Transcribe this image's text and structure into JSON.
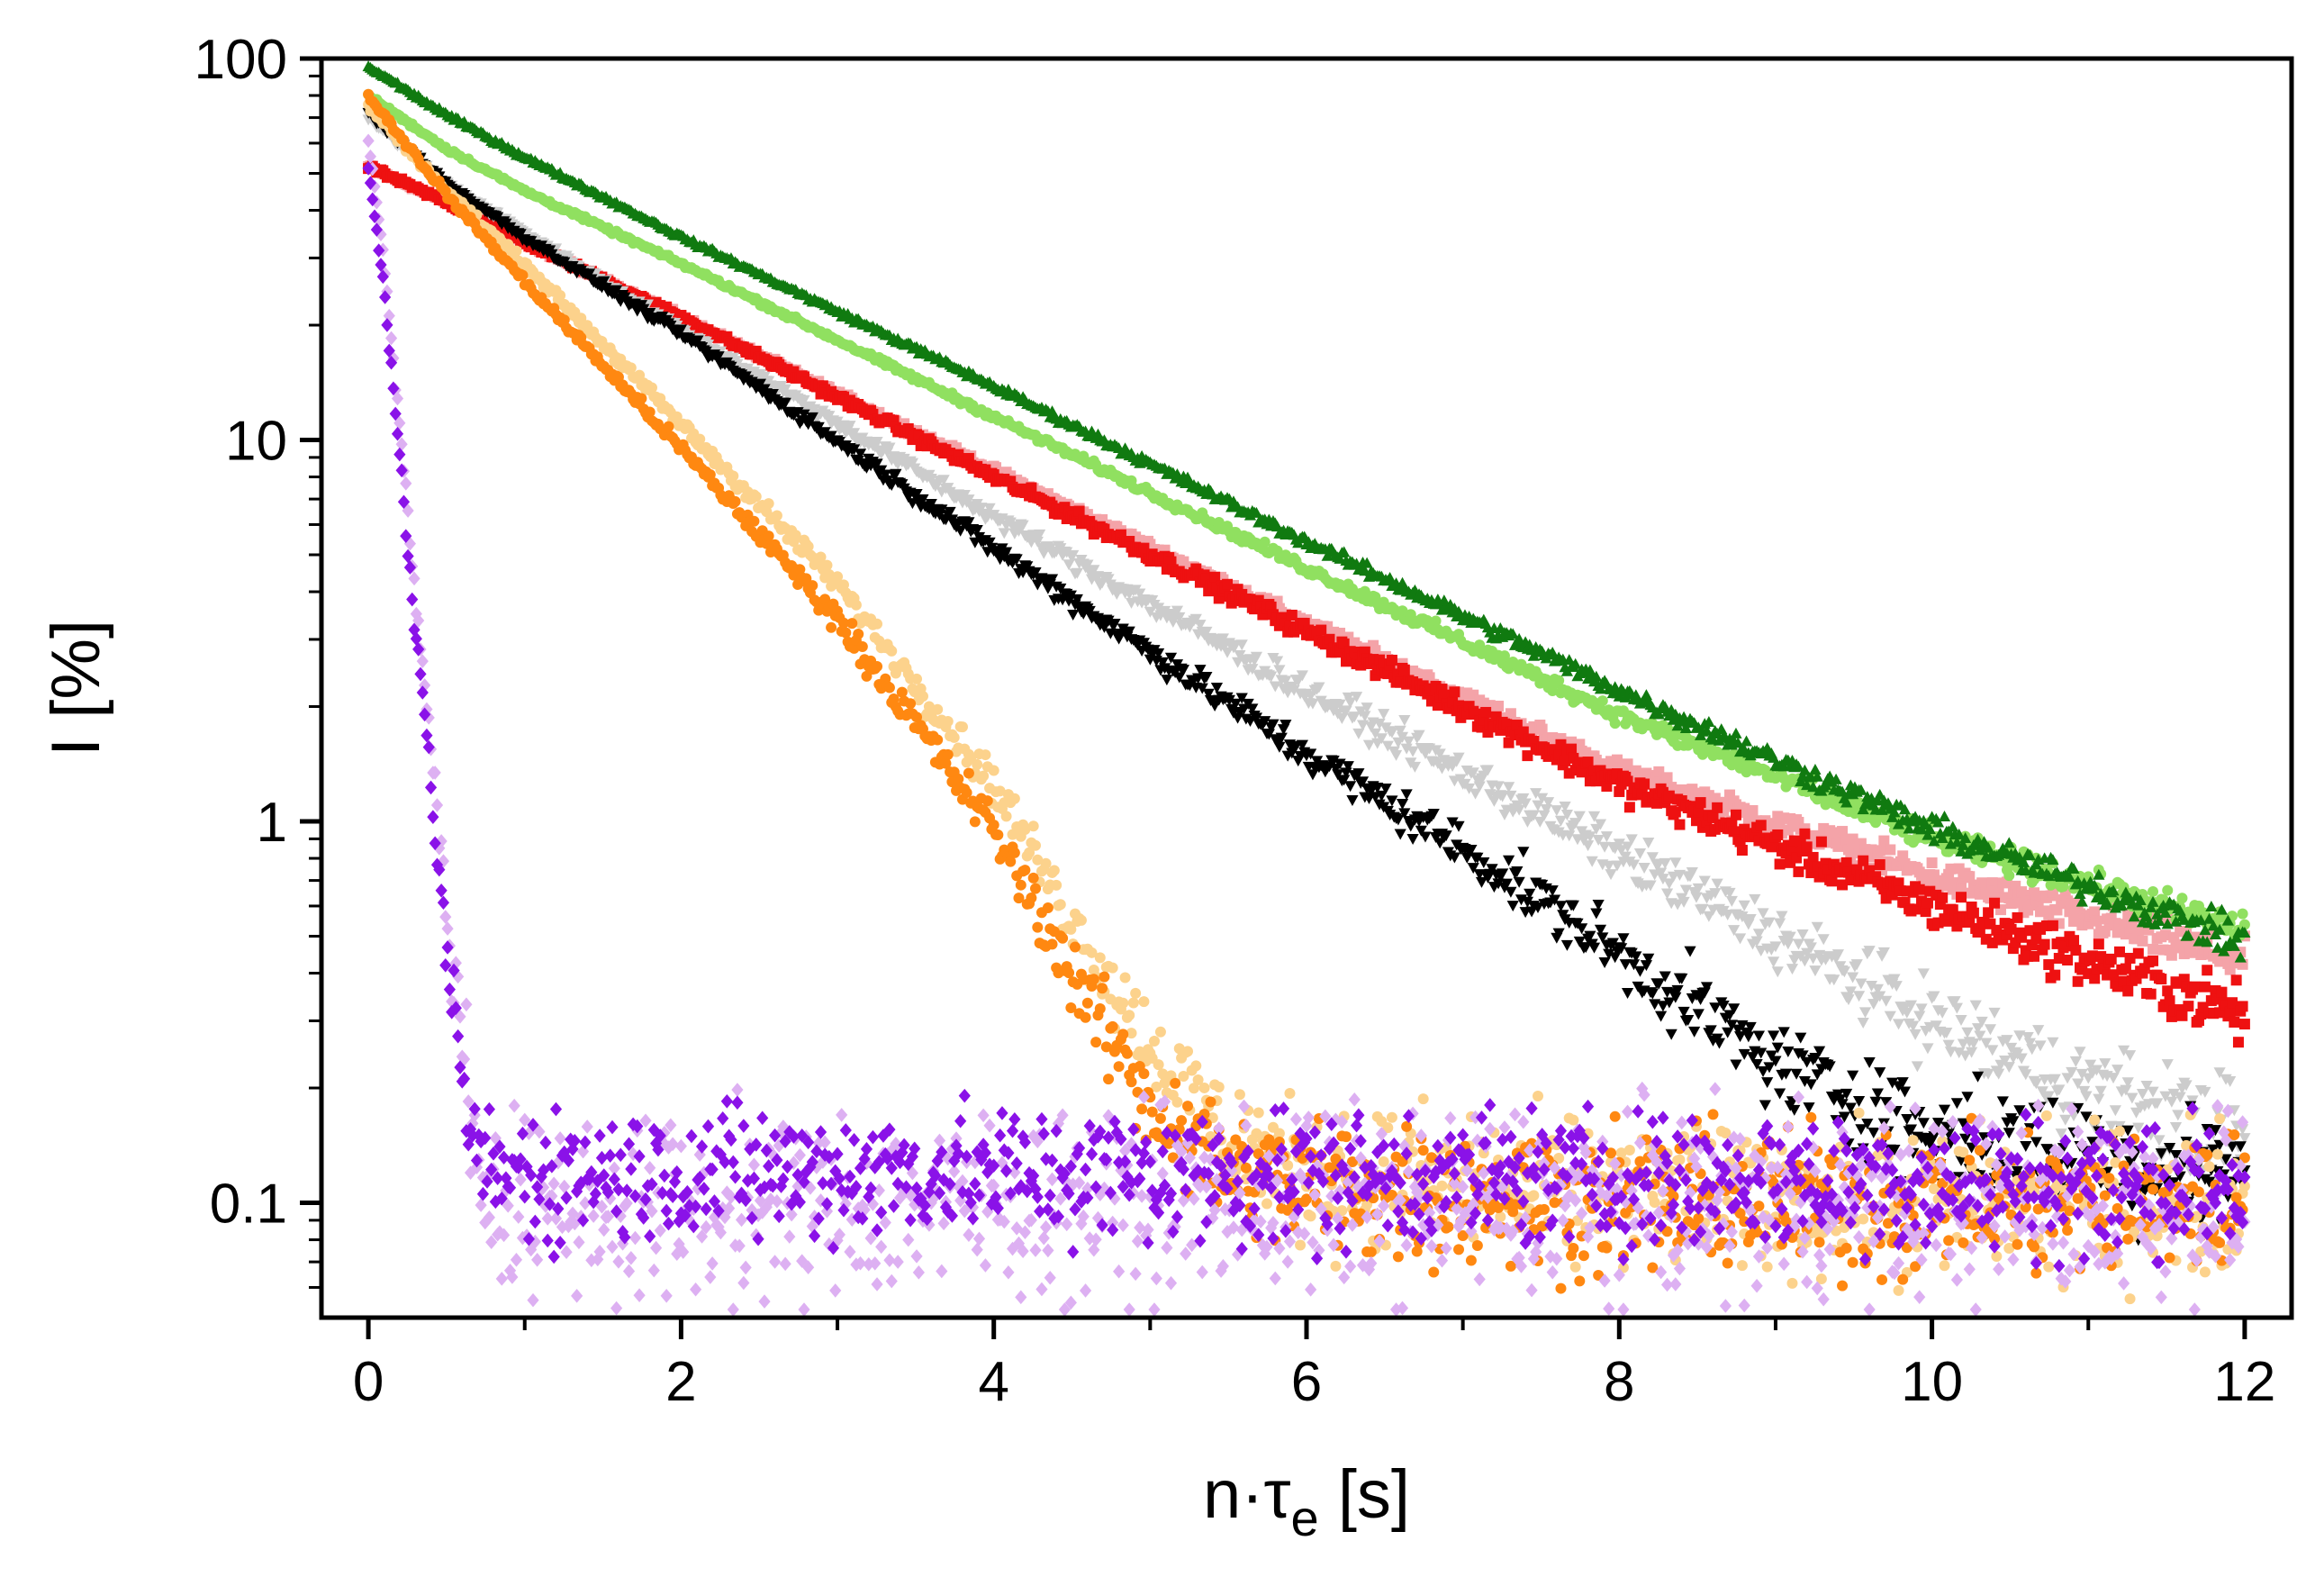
{
  "chart_data": {
    "type": "scatter",
    "title": "",
    "xlabel": {
      "main": "n·τ",
      "sub": "e",
      "unit": " [s]"
    },
    "ylabel": "I [%]",
    "xlim": [
      -0.3,
      12.3
    ],
    "ylim": [
      0.05,
      100
    ],
    "yscale": "log",
    "x_ticks": [
      0,
      2,
      4,
      6,
      8,
      10,
      12
    ],
    "x_tick_labels": [
      "0",
      "2",
      "4",
      "6",
      "8",
      "10",
      "12"
    ],
    "y_ticks": [
      0.1,
      1,
      10,
      100
    ],
    "y_tick_labels": [
      "0.1",
      "1",
      "10",
      "100"
    ],
    "grid": false,
    "legend": "none",
    "series": [
      {
        "name": "light-pink",
        "color": "#f4a3a8",
        "marker": "square",
        "x": [
          0,
          0.5,
          1,
          2,
          4,
          6,
          8,
          10,
          12
        ],
        "values": [
          52,
          42,
          33,
          21,
          8.3,
          3.3,
          1.35,
          0.72,
          0.43
        ],
        "noise": 0.08
      },
      {
        "name": "red",
        "color": "#ee1111",
        "marker": "square",
        "x": [
          0,
          0.5,
          1,
          2,
          4,
          6,
          8,
          10,
          12
        ],
        "values": [
          52,
          42,
          33,
          21,
          8.0,
          3.15,
          1.25,
          0.6,
          0.31
        ],
        "noise": 0.1
      },
      {
        "name": "light-green",
        "color": "#90e060",
        "marker": "circle",
        "x": [
          0,
          0.5,
          1,
          2,
          4,
          6,
          8,
          10,
          12
        ],
        "values": [
          80,
          58,
          45,
          29,
          11.5,
          4.6,
          1.9,
          0.9,
          0.52
        ],
        "noise": 0.07
      },
      {
        "name": "dark-green",
        "color": "#107a10",
        "marker": "triangle-up",
        "x": [
          0,
          0.5,
          1,
          2,
          4,
          6,
          8,
          10,
          12
        ],
        "values": [
          95,
          71,
          55,
          34,
          13.8,
          5.4,
          2.2,
          0.95,
          0.48
        ],
        "noise": 0.08
      },
      {
        "name": "light-gray",
        "color": "#cccccc",
        "marker": "triangle-down",
        "x": [
          0,
          0.5,
          1,
          2,
          4,
          6,
          8,
          9,
          10,
          11,
          12
        ],
        "values": [
          70,
          47,
          35,
          19.5,
          6.3,
          2.2,
          0.82,
          0.5,
          0.3,
          0.2,
          0.15
        ],
        "noise": 0.13
      },
      {
        "name": "black",
        "color": "#000000",
        "marker": "triangle-down",
        "x": [
          0,
          0.5,
          1,
          2,
          4,
          6,
          7,
          8,
          9,
          10,
          11,
          12
        ],
        "values": [
          72,
          47,
          34,
          19,
          5.2,
          1.5,
          0.85,
          0.45,
          0.23,
          0.15,
          0.13,
          0.12
        ],
        "noise": 0.13
      },
      {
        "name": "light-orange",
        "color": "#fcd28c",
        "marker": "circle",
        "x": [
          0,
          0.5,
          1,
          2,
          3,
          4,
          4.5,
          5,
          5.5,
          6,
          8,
          10,
          12
        ],
        "values": [
          75,
          45,
          29,
          11,
          4.2,
          1.25,
          0.55,
          0.26,
          0.15,
          0.12,
          0.105,
          0.1,
          0.1
        ],
        "noise": 0.14
      },
      {
        "name": "orange",
        "color": "#ff8811",
        "marker": "circle",
        "x": [
          0,
          0.5,
          1,
          2,
          3,
          4,
          4.5,
          5,
          5.5,
          6,
          8,
          10,
          12
        ],
        "values": [
          80,
          44,
          26,
          9.5,
          3.4,
          0.95,
          0.4,
          0.18,
          0.12,
          0.11,
          0.1,
          0.1,
          0.1
        ],
        "noise": 0.14
      },
      {
        "name": "lavender",
        "color": "#ddb0f2",
        "marker": "diamond",
        "x": [
          0,
          0.1,
          0.2,
          0.3,
          0.4,
          0.5,
          0.6,
          0.7,
          0.8,
          1.5,
          4,
          8,
          12
        ],
        "values": [
          62,
          30,
          11,
          4,
          1.5,
          0.6,
          0.26,
          0.13,
          0.1,
          0.095,
          0.1,
          0.1,
          0.1
        ],
        "noise": 0.18
      },
      {
        "name": "violet",
        "color": "#8a12e8",
        "marker": "diamond",
        "x": [
          0,
          0.1,
          0.2,
          0.3,
          0.4,
          0.5,
          0.6,
          0.7,
          0.8,
          1.5,
          4,
          8,
          12
        ],
        "values": [
          52,
          25,
          9,
          3.2,
          1.2,
          0.45,
          0.2,
          0.13,
          0.12,
          0.12,
          0.12,
          0.115,
          0.11
        ],
        "noise": 0.14
      }
    ]
  }
}
